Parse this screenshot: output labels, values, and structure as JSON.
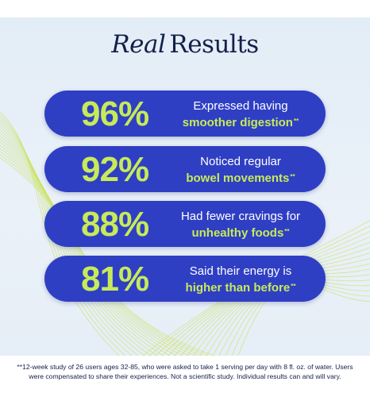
{
  "title": {
    "italic": "Real",
    "rest": "Results"
  },
  "stats": [
    {
      "percent": "96%",
      "line1": "Expressed having",
      "line2": "smoother digestion",
      "mark": "**"
    },
    {
      "percent": "92%",
      "line1": "Noticed regular",
      "line2": "bowel movements",
      "mark": "**"
    },
    {
      "percent": "88%",
      "line1": "Had fewer cravings for",
      "line2": "unhealthy foods",
      "mark": "**"
    },
    {
      "percent": "81%",
      "line1": "Said their energy is",
      "line2": "higher than before",
      "mark": "**"
    }
  ],
  "footnote": "**12-week study of 26 users ages 32-85, who were asked to take 1 serving per day with 8 fl. oz. of water. Users were compensated to share their experiences. Not a scientific study. Individual results can and will vary.",
  "colors": {
    "pill": "#2f3fc3",
    "accent": "#c7ea5a",
    "title": "#14204b",
    "wave": "#c9e35a"
  }
}
